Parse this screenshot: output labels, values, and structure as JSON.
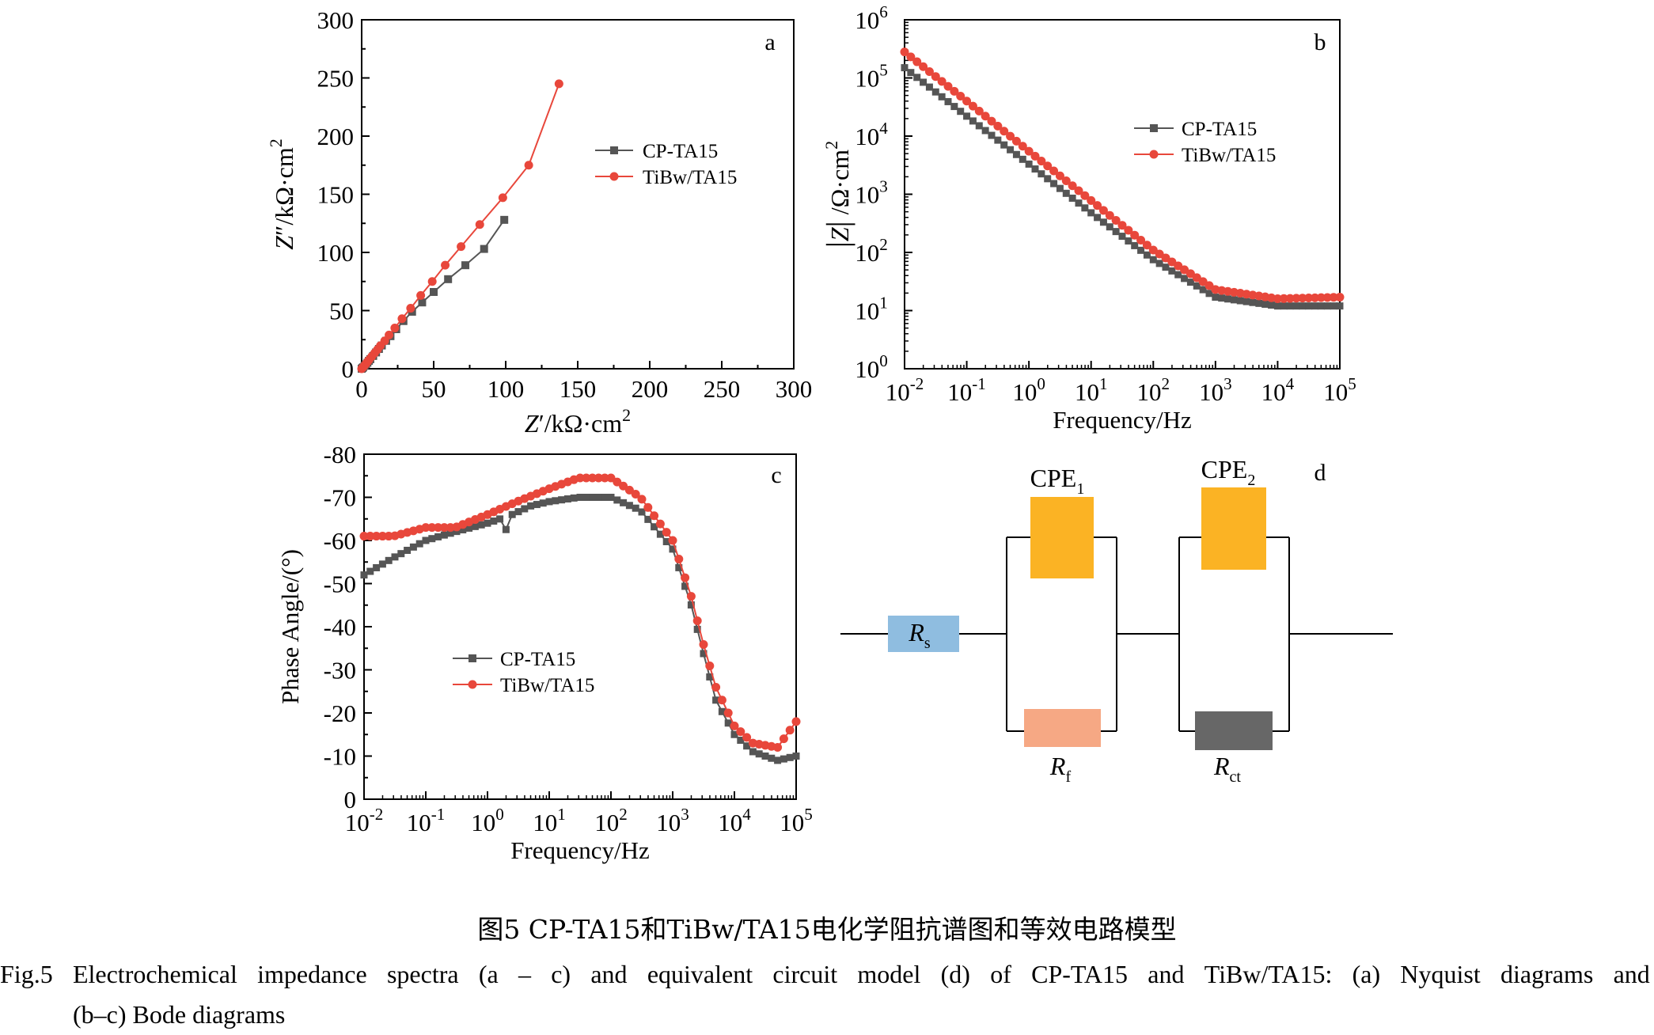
{
  "chart_data": [
    {
      "panel": "a",
      "type": "line",
      "xlabel": "Z′/kΩ·cm²",
      "ylabel": "Z″/kΩ·cm²",
      "xlim": [
        0,
        300
      ],
      "ylim": [
        0,
        300
      ],
      "xticks": [
        0,
        50,
        100,
        150,
        200,
        250,
        300
      ],
      "yticks": [
        0,
        50,
        100,
        150,
        200,
        250,
        300
      ],
      "legend_position": "upper-center-right",
      "series": [
        {
          "name": "CP-TA15",
          "color": "#555555",
          "marker": "square",
          "x": [
            0,
            0.5,
            1,
            2,
            3,
            4,
            5,
            6,
            8,
            10,
            12,
            14,
            17,
            20,
            24,
            29,
            35,
            42,
            50,
            60,
            72,
            85,
            99
          ],
          "y": [
            0,
            0.6,
            1.2,
            2.5,
            3.8,
            5.2,
            6.8,
            8.2,
            11,
            14,
            17,
            20,
            24,
            28,
            34,
            41,
            49,
            57,
            66,
            77,
            89,
            103,
            128
          ]
        },
        {
          "name": "TiBw/TA15",
          "color": "#e8473b",
          "marker": "circle",
          "x": [
            0,
            0.5,
            1,
            2,
            3,
            4,
            5,
            7,
            9,
            11,
            13,
            16,
            19,
            23,
            28,
            34,
            41,
            49,
            58,
            69,
            82,
            98,
            116,
            137
          ],
          "y": [
            0,
            0.7,
            1.4,
            2.8,
            4.3,
            5.9,
            7.5,
            10.5,
            13.5,
            16.5,
            19.8,
            24,
            29,
            35,
            43,
            52,
            63,
            75,
            89,
            105,
            124,
            147,
            175,
            245
          ]
        }
      ]
    },
    {
      "panel": "b",
      "type": "line",
      "xlabel": "Frequency/Hz",
      "ylabel": "|Z| /Ω·cm²",
      "xscale": "log",
      "yscale": "log",
      "xlim": [
        0.01,
        100000
      ],
      "ylim": [
        1,
        1000000
      ],
      "legend_position": "upper-right",
      "series": [
        {
          "name": "CP-TA15",
          "color": "#555555",
          "marker": "square",
          "x": [
            0.01,
            0.1,
            1,
            10,
            100,
            1000,
            10000,
            100000
          ],
          "y": [
            150000,
            22000,
            3300,
            480,
            75,
            17,
            12,
            12
          ]
        },
        {
          "name": "TiBw/TA15",
          "color": "#e8473b",
          "marker": "circle",
          "x": [
            0.01,
            0.1,
            1,
            10,
            100,
            1000,
            10000,
            100000
          ],
          "y": [
            280000,
            40000,
            5500,
            780,
            110,
            23,
            16,
            17
          ]
        }
      ]
    },
    {
      "panel": "c",
      "type": "line",
      "xlabel": "Frequency/Hz",
      "ylabel": "Phase Angle/(°)",
      "xscale": "log",
      "xlim": [
        0.01,
        100000
      ],
      "ylim": [
        0,
        -80
      ],
      "yticks": [
        0,
        -10,
        -20,
        -30,
        -40,
        -50,
        -60,
        -70,
        -80
      ],
      "legend_position": "lower-left",
      "series": [
        {
          "name": "CP-TA15",
          "color": "#555555",
          "marker": "square",
          "x": [
            0.01,
            0.03,
            0.1,
            0.3,
            1,
            1.6,
            2,
            2.5,
            5,
            10,
            30,
            100,
            300,
            1000,
            2000,
            3000,
            5000,
            10000,
            20000,
            50000,
            100000
          ],
          "y": [
            -52,
            -56,
            -60,
            -62,
            -64,
            -65,
            -62.5,
            -66,
            -68,
            -69,
            -70,
            -70,
            -67,
            -58,
            -45,
            -35,
            -23,
            -15,
            -11,
            -9,
            -10
          ]
        },
        {
          "name": "TiBw/TA15",
          "color": "#e8473b",
          "marker": "circle",
          "x": [
            0.01,
            0.03,
            0.1,
            0.3,
            1,
            3,
            10,
            30,
            100,
            300,
            1000,
            2000,
            3000,
            5000,
            10000,
            20000,
            50000,
            100000
          ],
          "y": [
            -61,
            -61,
            -63,
            -63,
            -66,
            -69,
            -72,
            -74.5,
            -74.5,
            -70,
            -60,
            -47,
            -37,
            -26,
            -17,
            -13,
            -12,
            -18
          ]
        }
      ]
    }
  ],
  "panel_labels": {
    "a": "a",
    "b": "b",
    "c": "c",
    "d": "d"
  },
  "circuit": {
    "rs": {
      "main": "R",
      "sub": "s",
      "color": "#8fbde0"
    },
    "cpe1": {
      "main": "CPE",
      "sub": "1",
      "color": "#fbb324"
    },
    "cpe2": {
      "main": "CPE",
      "sub": "2",
      "color": "#fbb324"
    },
    "rf": {
      "main": "R",
      "sub": "f",
      "color": "#f6a884"
    },
    "rct": {
      "main": "R",
      "sub": "ct",
      "color": "#676767"
    }
  },
  "caption": {
    "cn": "图5  CP-TA15和TiBw/TA15电化学阻抗谱图和等效电路模型",
    "en_line1": "Fig.5 Electrochemical impedance spectra (a – c) and equivalent circuit model (d) of CP-TA15 and TiBw/TA15: (a) Nyquist diagrams and",
    "en_line2": "(b–c) Bode diagrams"
  }
}
